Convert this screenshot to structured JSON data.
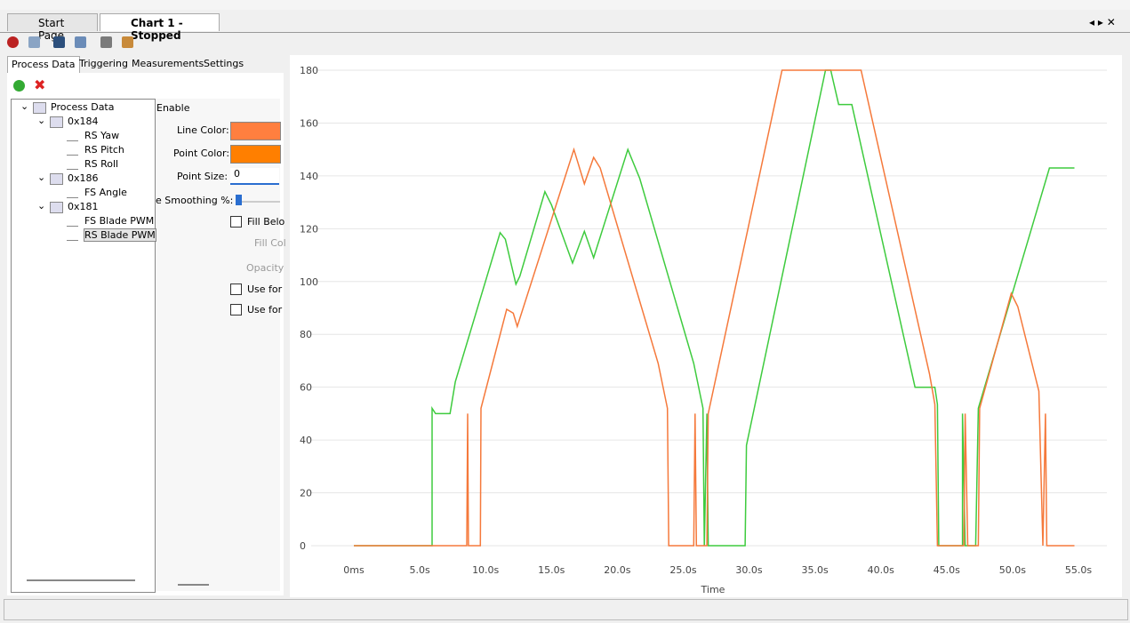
{
  "ui": {
    "doc_tabs": [
      "Start Page",
      "Chart 1 - Stopped"
    ],
    "side_tabs": [
      "Process Data",
      "Triggering",
      "Measurements",
      "Settings"
    ],
    "tree": {
      "root": "Process Data",
      "groups": [
        {
          "label": "0x184",
          "items": [
            "RS Yaw",
            "RS Pitch",
            "RS Roll"
          ]
        },
        {
          "label": "0x186",
          "items": [
            "FS Angle"
          ]
        },
        {
          "label": "0x181",
          "items": [
            "FS Blade PWM",
            "RS Blade PWM"
          ]
        }
      ]
    },
    "props": {
      "enable": "Enable",
      "line_color": "Line Color:",
      "point_color": "Point Color:",
      "point_size": "Point Size:",
      "point_size_value": "0",
      "smoothing": "e Smoothing %:",
      "fill_below": "Fill Belo",
      "fill_color": "Fill Col",
      "opacity": "Opacity",
      "use_for_1": "Use for",
      "use_for_2": "Use for"
    },
    "line_color": "#ff7f3f",
    "point_color": "#ff7f00"
  },
  "chart_data": {
    "type": "line",
    "xlabel": "Time",
    "xlim": [
      -1,
      56
    ],
    "ylim": [
      0,
      180
    ],
    "grid": true,
    "xticks": [
      {
        "value": 0,
        "label": "0ms"
      },
      {
        "value": 5,
        "label": "5.0s"
      },
      {
        "value": 10,
        "label": "10.0s"
      },
      {
        "value": 15,
        "label": "15.0s"
      },
      {
        "value": 20,
        "label": "20.0s"
      },
      {
        "value": 25,
        "label": "25.0s"
      },
      {
        "value": 30,
        "label": "30.0s"
      },
      {
        "value": 35,
        "label": "35.0s"
      },
      {
        "value": 40,
        "label": "40.0s"
      },
      {
        "value": 45,
        "label": "45.0s"
      },
      {
        "value": 50,
        "label": "50.0s"
      },
      {
        "value": 55,
        "label": "55.0s"
      }
    ],
    "yticks": [
      0,
      20,
      40,
      60,
      80,
      100,
      120,
      140,
      160,
      180
    ],
    "series": [
      {
        "color": "#3ecb3e",
        "x": [
          0,
          5.94,
          5.94,
          6.2,
          7.3,
          7.7,
          11.1,
          11.5,
          12.3,
          12.6,
          14.5,
          15.0,
          16.6,
          17.5,
          18.2,
          20.8,
          21.7,
          25.8,
          26.5,
          26.6,
          26.8,
          26.9,
          29.7,
          29.8,
          35.8,
          36.2,
          36.8,
          37.8,
          42.6,
          44.1,
          44.3,
          44.4,
          46.2,
          46.2,
          46.4,
          47.2,
          47.4,
          52.8,
          54.7
        ],
        "values": [
          0,
          0,
          52,
          50,
          50,
          62,
          118.5,
          116,
          99,
          102,
          134,
          129,
          107,
          119,
          109,
          150,
          139,
          69,
          52,
          0,
          50,
          0,
          0,
          38,
          180,
          180,
          167,
          167,
          60,
          60,
          53.5,
          0,
          0,
          50,
          0,
          0,
          52,
          143,
          143
        ]
      },
      {
        "color": "#f5793b",
        "x": [
          0,
          8.57,
          8.64,
          8.7,
          9.6,
          9.65,
          11.6,
          12.1,
          12.4,
          16.7,
          17.5,
          18.2,
          18.7,
          23.1,
          23.8,
          23.9,
          25.8,
          25.9,
          26.0,
          26.8,
          26.9,
          32.5,
          38.5,
          43.7,
          44.1,
          44.3,
          46.3,
          46.4,
          46.6,
          47.4,
          47.5,
          49.9,
          50.4,
          52.0,
          52.3,
          52.5,
          52.6,
          54.7
        ],
        "values": [
          0,
          0,
          50,
          0,
          0,
          52,
          89.5,
          88,
          83,
          150,
          137,
          147,
          143,
          69,
          52,
          0,
          0,
          50,
          0,
          0,
          50,
          180,
          180,
          65,
          53.5,
          0,
          0,
          50,
          0,
          0,
          52,
          95.5,
          90.5,
          58.5,
          0,
          50,
          0,
          0
        ]
      }
    ]
  }
}
